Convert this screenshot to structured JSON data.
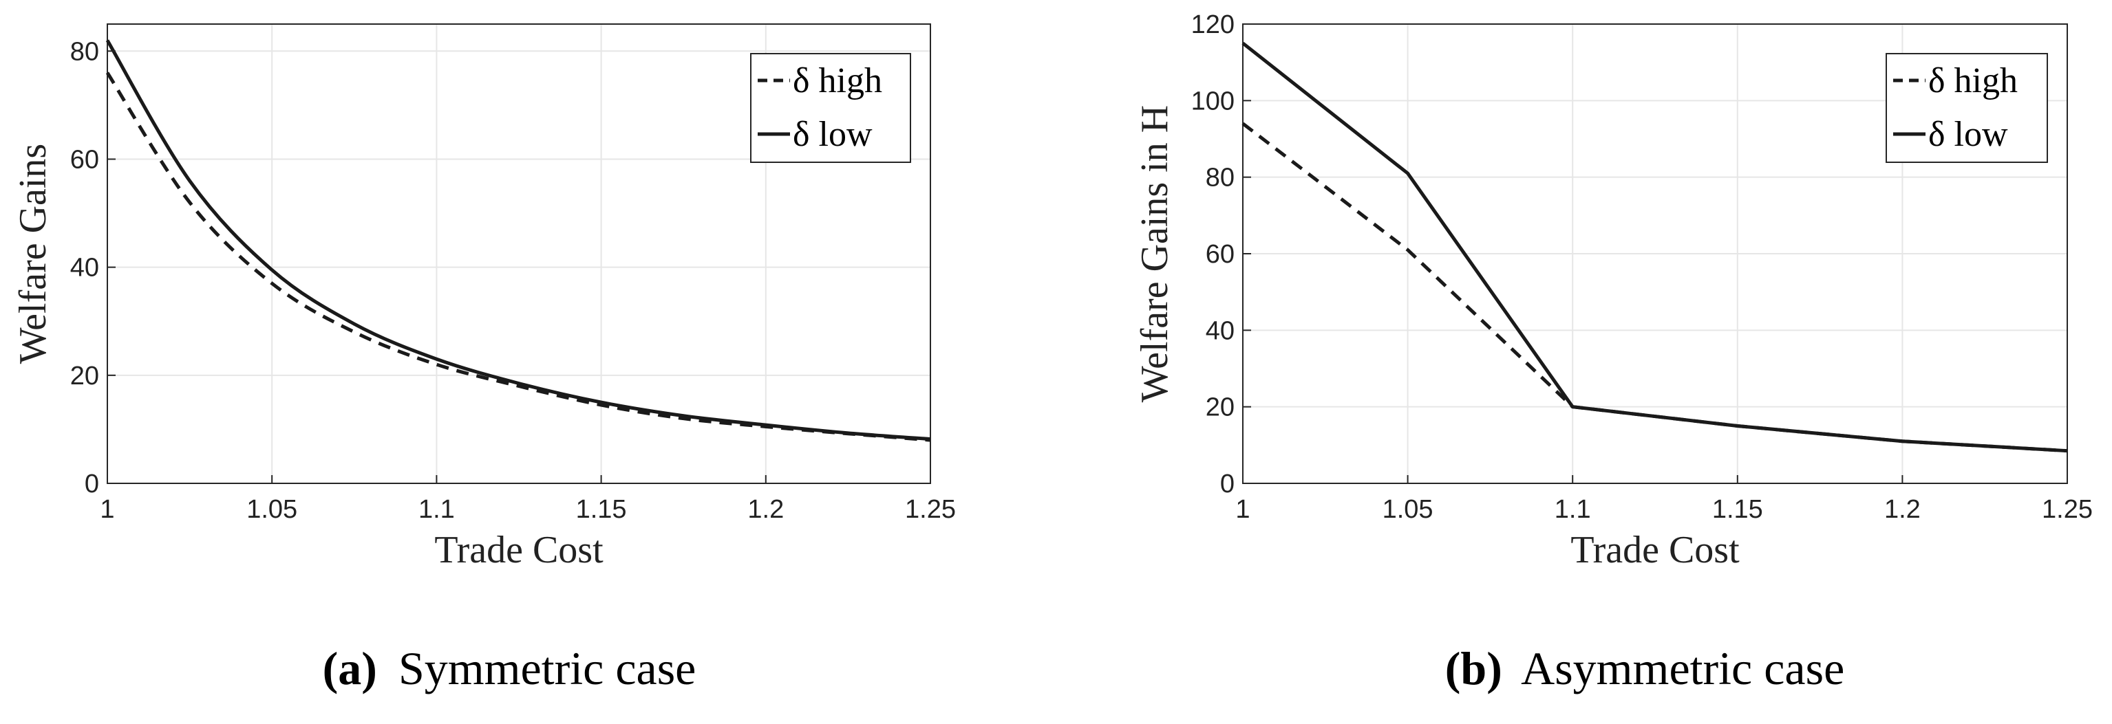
{
  "chart_data": [
    {
      "type": "line",
      "id": "a",
      "xlabel": "Trade Cost",
      "ylabel": "Welfare Gains",
      "xlim": [
        1,
        1.25
      ],
      "ylim": [
        0,
        85
      ],
      "xticks": [
        1,
        1.05,
        1.1,
        1.15,
        1.2,
        1.25
      ],
      "xtick_labels": [
        "1",
        "1.05",
        "1.1",
        "1.15",
        "1.2",
        "1.25"
      ],
      "yticks": [
        0,
        20,
        40,
        60,
        80
      ],
      "ytick_labels": [
        "0",
        "20",
        "40",
        "60",
        "80"
      ],
      "grid": true,
      "legend_position": "top-right",
      "x": [
        1,
        1.025,
        1.05,
        1.075,
        1.1,
        1.125,
        1.15,
        1.175,
        1.2,
        1.225,
        1.25
      ],
      "series": [
        {
          "name": "high",
          "legend_label": "δ high",
          "style": "dashed",
          "values": [
            76,
            52,
            37,
            28,
            22,
            18,
            14.5,
            12,
            10.5,
            9.2,
            8
          ]
        },
        {
          "name": "low",
          "legend_label": "δ low",
          "style": "solid",
          "values": [
            82,
            56,
            39.5,
            29.5,
            23,
            18.5,
            15,
            12.5,
            10.8,
            9.3,
            8.2
          ]
        }
      ],
      "caption_letter": "(a)",
      "caption_text": "Symmetric case"
    },
    {
      "type": "line",
      "id": "b",
      "xlabel": "Trade Cost",
      "ylabel": "Welfare Gains in H",
      "xlim": [
        1,
        1.25
      ],
      "ylim": [
        0,
        120
      ],
      "xticks": [
        1,
        1.05,
        1.1,
        1.15,
        1.2,
        1.25
      ],
      "xtick_labels": [
        "1",
        "1.05",
        "1.1",
        "1.15",
        "1.2",
        "1.25"
      ],
      "yticks": [
        0,
        20,
        40,
        60,
        80,
        100,
        120
      ],
      "ytick_labels": [
        "0",
        "20",
        "40",
        "60",
        "80",
        "100",
        "120"
      ],
      "grid": true,
      "legend_position": "top-right",
      "x": [
        1,
        1.05,
        1.1,
        1.15,
        1.2,
        1.25
      ],
      "series": [
        {
          "name": "high",
          "legend_label": "δ high",
          "style": "dashed",
          "values": [
            94,
            61,
            20,
            15,
            11,
            8.5
          ]
        },
        {
          "name": "low",
          "legend_label": "δ low",
          "style": "solid",
          "values": [
            115,
            81,
            20,
            15,
            11,
            8.5
          ]
        }
      ],
      "caption_letter": "(b)",
      "caption_text": "Asymmetric case"
    }
  ],
  "colors": {
    "line": "#1a1a1a",
    "grid": "#e6e6e6",
    "axis": "#262626",
    "legend_border": "#262626"
  }
}
